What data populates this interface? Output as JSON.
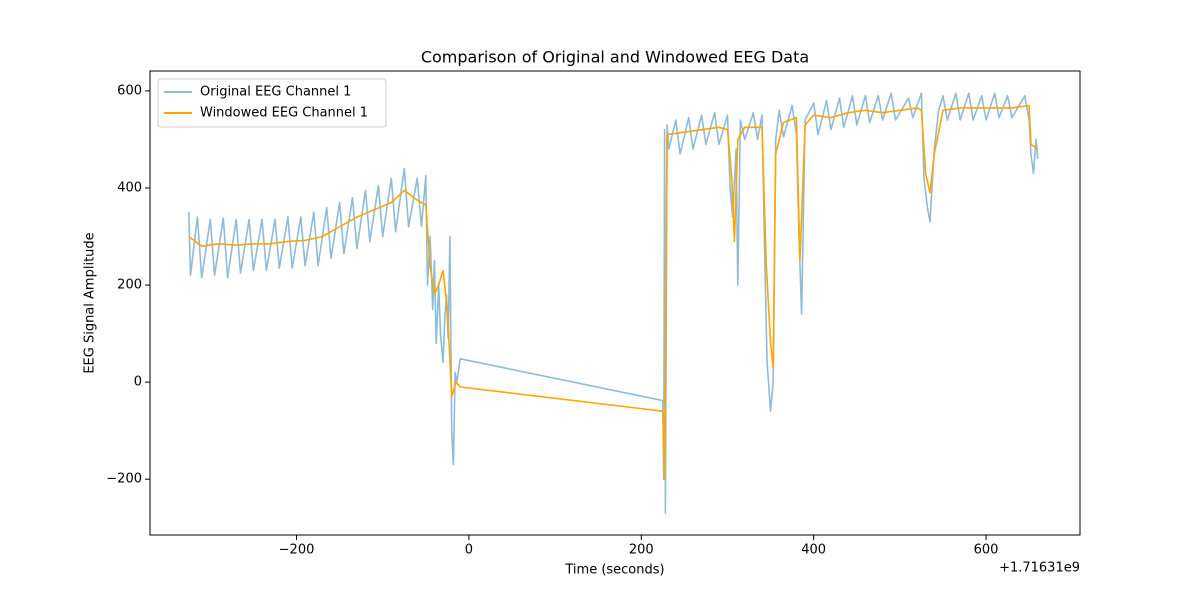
{
  "chart_data": {
    "type": "line",
    "title": "Comparison of Original and Windowed EEG Data",
    "x_label": "Time (seconds)",
    "y_label": "EEG Signal Amplitude",
    "x_offset_label": "+1.71631e9",
    "xlim": [
      -370,
      709
    ],
    "ylim": [
      -315,
      641
    ],
    "xticks": [
      {
        "value": -200,
        "label": "−200"
      },
      0,
      200,
      400,
      600
    ],
    "yticks": [
      {
        "value": -200,
        "label": "−200"
      },
      0,
      200,
      400,
      600
    ],
    "grid": false,
    "legend": "upper left",
    "series": [
      {
        "name": "Original EEG Channel 1",
        "color": "#8fbbd9",
        "x": [
          -325,
          -323,
          -315,
          -310,
          -300,
          -295,
          -285,
          -280,
          -270,
          -265,
          -255,
          -250,
          -240,
          -235,
          -225,
          -220,
          -210,
          -205,
          -195,
          -190,
          -180,
          -175,
          -165,
          -160,
          -150,
          -145,
          -135,
          -130,
          -120,
          -115,
          -105,
          -100,
          -90,
          -85,
          -75,
          -70,
          -60,
          -55,
          -50,
          -48,
          -45,
          -42,
          -40,
          -38,
          -35,
          -33,
          -30,
          -28,
          -26,
          -24,
          -22,
          -20,
          -18,
          -16,
          -14,
          -10,
          225,
          226,
          227,
          228,
          230,
          232,
          240,
          245,
          255,
          260,
          270,
          275,
          285,
          290,
          300,
          303,
          306,
          310,
          312,
          315,
          320,
          330,
          335,
          340,
          343,
          346,
          350,
          353,
          356,
          360,
          365,
          375,
          380,
          383,
          386,
          390,
          400,
          405,
          415,
          420,
          430,
          435,
          445,
          450,
          460,
          465,
          475,
          480,
          490,
          495,
          510,
          515,
          525,
          528,
          532,
          535,
          540,
          545,
          550,
          555,
          565,
          570,
          580,
          585,
          595,
          600,
          610,
          615,
          625,
          630,
          645,
          650,
          652,
          655,
          658,
          660
        ],
        "values": [
          350,
          220,
          340,
          215,
          335,
          220,
          338,
          215,
          335,
          225,
          335,
          230,
          335,
          230,
          335,
          235,
          340,
          235,
          340,
          240,
          350,
          240,
          360,
          255,
          370,
          265,
          380,
          275,
          395,
          290,
          405,
          300,
          420,
          310,
          440,
          320,
          420,
          320,
          425,
          200,
          300,
          150,
          250,
          80,
          200,
          100,
          40,
          130,
          180,
          90,
          300,
          -100,
          -170,
          20,
          0,
          48,
          -38,
          -200,
          520,
          -270,
          530,
          480,
          540,
          470,
          545,
          480,
          550,
          490,
          555,
          490,
          550,
          400,
          340,
          480,
          200,
          540,
          500,
          555,
          500,
          550,
          280,
          40,
          -60,
          0,
          500,
          560,
          505,
          570,
          510,
          300,
          140,
          540,
          575,
          510,
          580,
          520,
          585,
          525,
          590,
          530,
          590,
          535,
          590,
          540,
          595,
          540,
          585,
          545,
          595,
          420,
          360,
          330,
          480,
          560,
          590,
          540,
          595,
          540,
          595,
          540,
          590,
          540,
          595,
          545,
          590,
          545,
          590,
          540,
          470,
          430,
          500,
          460
        ]
      },
      {
        "name": "Windowed EEG Channel 1",
        "color": "#ffa500",
        "x": [
          -325,
          -310,
          -290,
          -270,
          -250,
          -230,
          -210,
          -190,
          -170,
          -150,
          -130,
          -110,
          -90,
          -75,
          -60,
          -50,
          -45,
          -40,
          -35,
          -30,
          -25,
          -20,
          -15,
          -10,
          225,
          227,
          230,
          250,
          270,
          290,
          300,
          305,
          308,
          312,
          320,
          340,
          345,
          350,
          353,
          356,
          365,
          380,
          384,
          390,
          400,
          420,
          440,
          460,
          480,
          500,
          520,
          525,
          530,
          535,
          540,
          550,
          570,
          590,
          610,
          630,
          650,
          652,
          660
        ],
        "values": [
          300,
          280,
          285,
          282,
          285,
          285,
          290,
          292,
          300,
          320,
          340,
          355,
          370,
          395,
          375,
          365,
          240,
          180,
          200,
          230,
          150,
          -30,
          0,
          -10,
          -60,
          -200,
          510,
          515,
          520,
          525,
          520,
          420,
          290,
          500,
          525,
          525,
          240,
          80,
          30,
          470,
          535,
          545,
          250,
          530,
          550,
          545,
          555,
          560,
          555,
          560,
          565,
          560,
          430,
          390,
          470,
          560,
          565,
          565,
          565,
          565,
          570,
          490,
          480
        ]
      }
    ]
  }
}
